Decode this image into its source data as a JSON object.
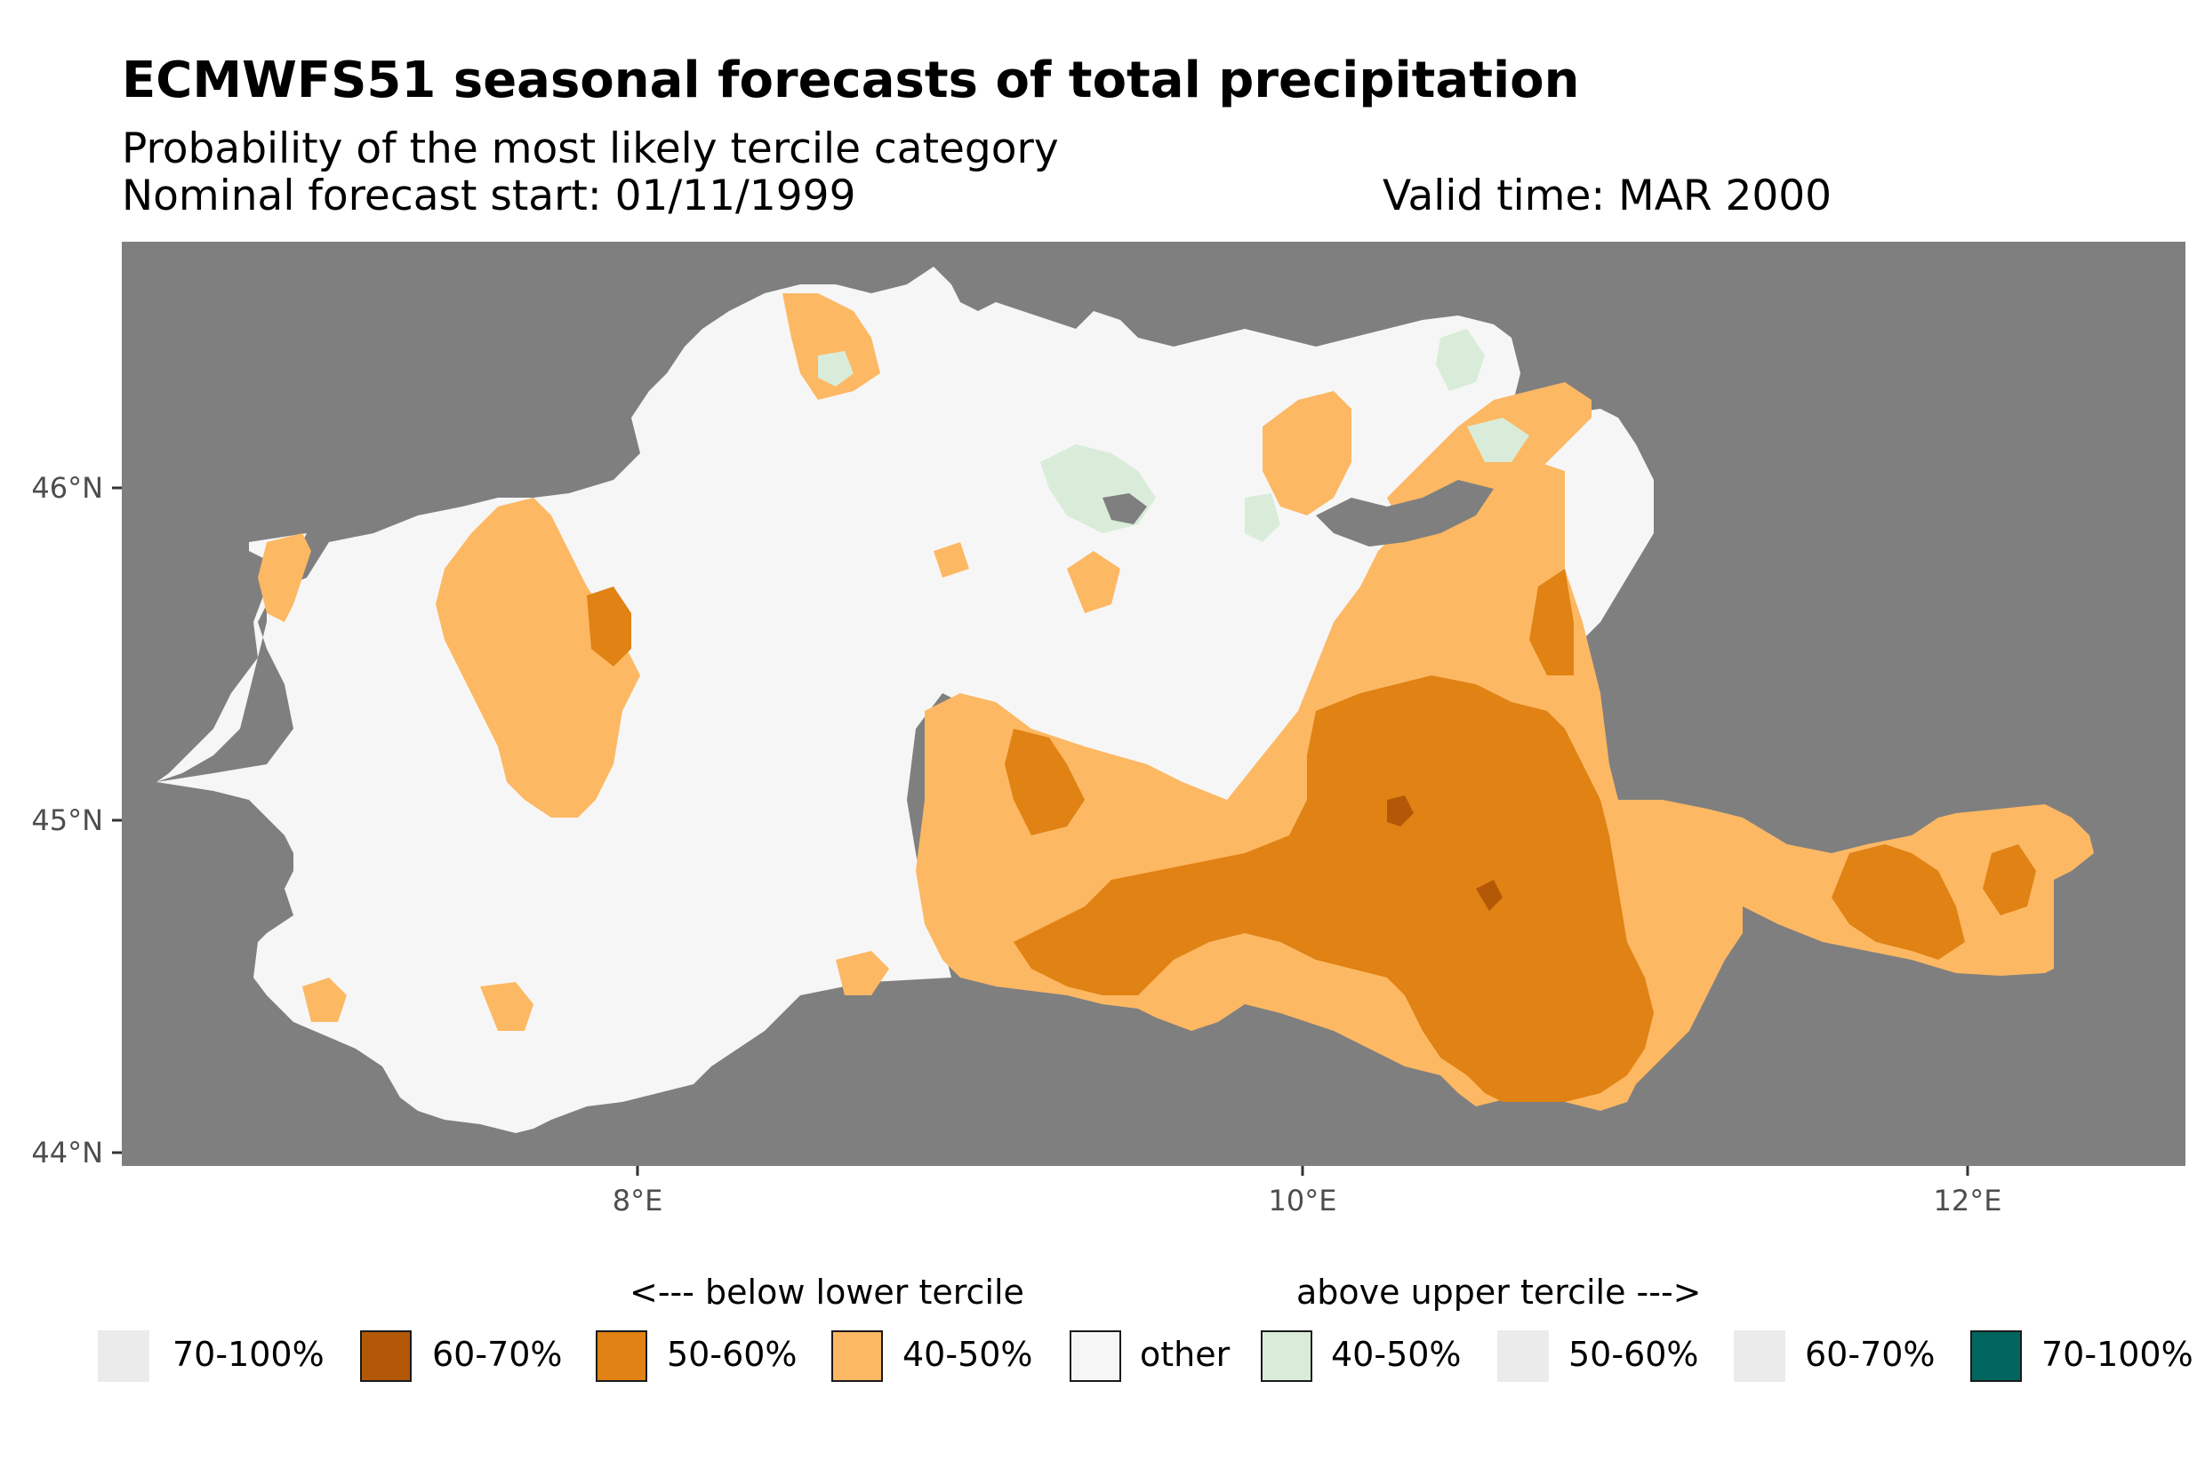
{
  "title": "ECMWFS51 seasonal forecasts of total precipitation",
  "subtitle": "Probability of the most likely tercile category",
  "forecast_start": "Nominal forecast start: 01/11/1999",
  "valid_time": "Valid time: MAR 2000",
  "colors": {
    "background": "#7f7f7f",
    "other": "#f6f6f6",
    "below_40_50": "#fdb863",
    "below_50_60": "#e08214",
    "below_60_70": "#b35806",
    "above_40_50": "#d9ecd9",
    "above_70_100": "#01665e",
    "empty": "#ebebeb"
  },
  "legend": {
    "below_title": "<--- below lower tercile",
    "above_title": "above upper tercile --->",
    "items": [
      {
        "label": "70-100%",
        "color": "#ebebeb",
        "shown": false
      },
      {
        "label": "60-70%",
        "color": "#b35806",
        "shown": true
      },
      {
        "label": "50-60%",
        "color": "#e08214",
        "shown": true
      },
      {
        "label": "40-50%",
        "color": "#fdb863",
        "shown": true
      },
      {
        "label": "other",
        "color": "#f6f6f6",
        "shown": true
      },
      {
        "label": "40-50%",
        "color": "#d9ecd9",
        "shown": true
      },
      {
        "label": "50-60%",
        "color": "#ebebeb",
        "shown": false
      },
      {
        "label": "60-70%",
        "color": "#ebebeb",
        "shown": false
      },
      {
        "label": "70-100%",
        "color": "#01665e",
        "shown": true
      }
    ]
  },
  "axes": {
    "x_ticks": [
      {
        "value": 8,
        "label": "8°E"
      },
      {
        "value": 10,
        "label": "10°E"
      },
      {
        "value": 12,
        "label": "12°E"
      }
    ],
    "y_ticks": [
      {
        "value": 46,
        "label": "46°N"
      },
      {
        "value": 45,
        "label": "45°N"
      },
      {
        "value": 44,
        "label": "44°N"
      }
    ],
    "xlim": [
      6.45,
      12.65
    ],
    "ylim": [
      43.95,
      46.74
    ]
  }
}
